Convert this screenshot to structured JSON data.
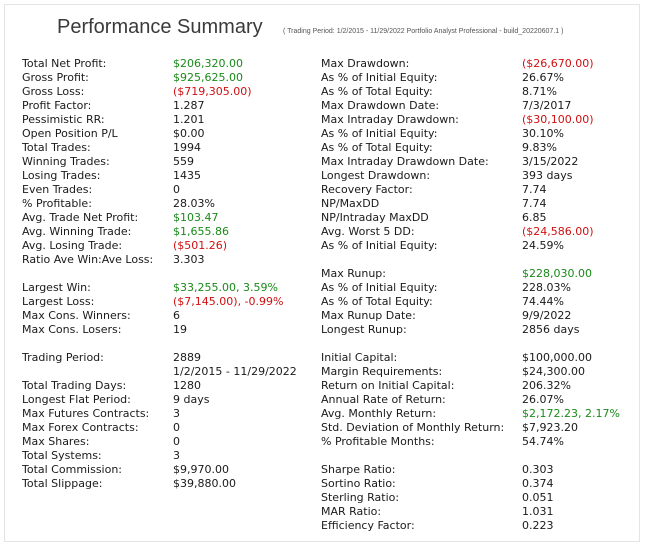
{
  "title": "Performance Summary",
  "subtitle": "( Trading Period: 1/2/2015 - 11/29/2022    Portfolio Analyst Professional - build_20220607.1 )",
  "left_column": [
    {
      "label": "Total Net Profit:",
      "value": "$206,320.00",
      "color": "green"
    },
    {
      "label": "Gross Profit:",
      "value": "$925,625.00",
      "color": "green"
    },
    {
      "label": "Gross Loss:",
      "value": "($719,305.00)",
      "color": "red"
    },
    {
      "label": "Profit Factor:",
      "value": "1.287",
      "color": "black"
    },
    {
      "label": "Pessimistic RR:",
      "value": "1.201",
      "color": "black"
    },
    {
      "label": "Open Position P/L",
      "value": "$0.00",
      "color": "black"
    },
    {
      "label": "Total Trades:",
      "value": "1994",
      "color": "black"
    },
    {
      "label": "Winning Trades:",
      "value": "559",
      "color": "black"
    },
    {
      "label": "Losing Trades:",
      "value": "1435",
      "color": "black"
    },
    {
      "label": "Even Trades:",
      "value": "0",
      "color": "black"
    },
    {
      "label": "% Profitable:",
      "value": "28.03%",
      "color": "black"
    },
    {
      "label": "Avg. Trade Net Profit:",
      "value": "$103.47",
      "color": "green"
    },
    {
      "label": "Avg. Winning Trade:",
      "value": "$1,655.86",
      "color": "green"
    },
    {
      "label": "Avg. Losing Trade:",
      "value": "($501.26)",
      "color": "red"
    },
    {
      "label": "Ratio Ave Win:Ave Loss:",
      "value": "3.303",
      "color": "black"
    },
    {
      "gap": true
    },
    {
      "label": "Largest Win:",
      "value": "$33,255.00, 3.59%",
      "color": "green"
    },
    {
      "label": "Largest Loss:",
      "value": "($7,145.00), -0.99%",
      "color": "red"
    },
    {
      "label": "Max Cons. Winners:",
      "value": "6",
      "color": "black"
    },
    {
      "label": "Max Cons. Losers:",
      "value": "19",
      "color": "black"
    },
    {
      "gap": true
    },
    {
      "label": "Trading Period:",
      "value": "2889",
      "color": "black"
    },
    {
      "label": "",
      "value": "1/2/2015 - 11/29/2022",
      "color": "black"
    },
    {
      "label": "Total Trading Days:",
      "value": "1280",
      "color": "black"
    },
    {
      "label": "Longest Flat Period:",
      "value": "9 days",
      "color": "black"
    },
    {
      "label": "Max Futures Contracts:",
      "value": "3",
      "color": "black"
    },
    {
      "label": "Max Forex Contracts:",
      "value": "0",
      "color": "black"
    },
    {
      "label": "Max Shares:",
      "value": "0",
      "color": "black"
    },
    {
      "label": "Total Systems:",
      "value": "3",
      "color": "black"
    },
    {
      "label": "Total Commission:",
      "value": "$9,970.00",
      "color": "black"
    },
    {
      "label": "Total Slippage:",
      "value": "$39,880.00",
      "color": "black"
    }
  ],
  "right_column": [
    {
      "label": "Max Drawdown:",
      "value": "($26,670.00)",
      "color": "red"
    },
    {
      "label": "As % of Initial Equity:",
      "value": "26.67%",
      "color": "black"
    },
    {
      "label": "As % of Total Equity:",
      "value": "8.71%",
      "color": "black"
    },
    {
      "label": "Max Drawdown Date:",
      "value": "7/3/2017",
      "color": "black"
    },
    {
      "label": "Max Intraday Drawdown:",
      "value": "($30,100.00)",
      "color": "red"
    },
    {
      "label": "As % of Initial Equity:",
      "value": "30.10%",
      "color": "black"
    },
    {
      "label": "As % of Total Equity:",
      "value": "9.83%",
      "color": "black"
    },
    {
      "label": "Max Intraday Drawdown Date:",
      "value": "3/15/2022",
      "color": "black"
    },
    {
      "label": "Longest Drawdown:",
      "value": "393 days",
      "color": "black"
    },
    {
      "label": "Recovery Factor:",
      "value": "7.74",
      "color": "black"
    },
    {
      "label": "NP/MaxDD",
      "value": "7.74",
      "color": "black"
    },
    {
      "label": "NP/Intraday MaxDD",
      "value": "6.85",
      "color": "black"
    },
    {
      "label": "Avg. Worst 5 DD:",
      "value": "($24,586.00)",
      "color": "red"
    },
    {
      "label": "As % of Initial Equity:",
      "value": "24.59%",
      "color": "black"
    },
    {
      "gap": true
    },
    {
      "label": "Max Runup:",
      "value": "$228,030.00",
      "color": "green"
    },
    {
      "label": "As % of Initial Equity:",
      "value": "228.03%",
      "color": "black"
    },
    {
      "label": "As % of Total Equity:",
      "value": "74.44%",
      "color": "black"
    },
    {
      "label": "Max Runup Date:",
      "value": "9/9/2022",
      "color": "black"
    },
    {
      "label": "Longest Runup:",
      "value": "2856 days",
      "color": "black"
    },
    {
      "gap": true
    },
    {
      "label": "Initial Capital:",
      "value": "$100,000.00",
      "color": "black"
    },
    {
      "label": "Margin Requirements:",
      "value": "$24,300.00",
      "color": "black"
    },
    {
      "label": "Return on Initial Capital:",
      "value": "206.32%",
      "color": "black"
    },
    {
      "label": "Annual Rate of Return:",
      "value": "26.07%",
      "color": "black"
    },
    {
      "label": "Avg. Monthly Return:",
      "value": "$2,172.23, 2.17%",
      "color": "green"
    },
    {
      "label": "Std. Deviation of Monthly Return:",
      "value": "$7,923.20",
      "color": "black"
    },
    {
      "label": "% Profitable Months:",
      "value": "54.74%",
      "color": "black"
    },
    {
      "gap": true
    },
    {
      "label": "Sharpe Ratio:",
      "value": "0.303",
      "color": "black"
    },
    {
      "label": "Sortino Ratio:",
      "value": "0.374",
      "color": "black"
    },
    {
      "label": "Sterling Ratio:",
      "value": "0.051",
      "color": "black"
    },
    {
      "label": "MAR Ratio:",
      "value": "1.031",
      "color": "black"
    },
    {
      "label": "Efficiency Factor:",
      "value": "0.223",
      "color": "black"
    }
  ]
}
